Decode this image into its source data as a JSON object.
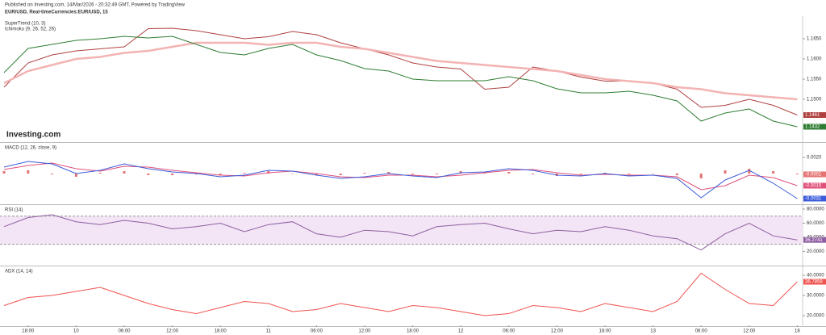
{
  "header": {
    "published": "Published on Investing.com, 14/Mar/2026 - 20:32:49 GMT, Powered by TradingView",
    "symbol": "EUR/USD, Real-timeCurrencies:EUR/USD, 15",
    "watermark": "Investing.com"
  },
  "chart_data": [
    {
      "type": "line",
      "ylim": [
        1.1396,
        1.1702
      ],
      "yticks": [
        {
          "value": 1.165,
          "label": "1.1650"
        },
        {
          "value": 1.16,
          "label": "1.1600"
        },
        {
          "value": 1.155,
          "label": "1.1550"
        },
        {
          "value": 1.15,
          "label": "1.1500"
        }
      ],
      "series": [
        {
          "name": "SuperTrend (10, 3)",
          "color": "#b04040",
          "tag": true,
          "values": [
            1.153,
            1.159,
            1.161,
            1.162,
            1.1625,
            1.163,
            1.1675,
            1.1676,
            1.167,
            1.166,
            1.165,
            1.1655,
            1.1668,
            1.166,
            1.164,
            1.1625,
            1.161,
            1.159,
            1.158,
            1.1575,
            1.1525,
            1.153,
            1.158,
            1.157,
            1.1555,
            1.1545,
            1.1545,
            1.154,
            1.1525,
            1.148,
            1.1485,
            1.15,
            1.1485,
            1.1461
          ]
        },
        {
          "name": "Ichimoku (9, 26, 52, 26)",
          "color": "#f3b3b3",
          "tag": false,
          "values": [
            1.154,
            1.157,
            1.1585,
            1.16,
            1.1605,
            1.1615,
            1.162,
            1.163,
            1.164,
            1.164,
            1.164,
            1.1635,
            1.164,
            1.164,
            1.163,
            1.1625,
            1.1615,
            1.1605,
            1.1595,
            1.159,
            1.1585,
            1.158,
            1.1575,
            1.157,
            1.156,
            1.155,
            1.1545,
            1.154,
            1.153,
            1.1525,
            1.1515,
            1.151,
            1.1505,
            1.15
          ]
        },
        {
          "color": "#2e7d32",
          "tag": true,
          "values": [
            1.1566,
            1.1626,
            1.1636,
            1.1646,
            1.165,
            1.1656,
            1.1652,
            1.1656,
            1.1636,
            1.1616,
            1.161,
            1.1626,
            1.1636,
            1.161,
            1.1596,
            1.1576,
            1.157,
            1.155,
            1.1546,
            1.1546,
            1.1546,
            1.1556,
            1.1546,
            1.1526,
            1.1516,
            1.1516,
            1.152,
            1.151,
            1.1496,
            1.1446,
            1.1466,
            1.1476,
            1.1446,
            1.1432
          ]
        }
      ]
    },
    {
      "type": "line",
      "title": "MACD (12, 26, close, 9)",
      "ylim": [
        -0.0037,
        0.0037
      ],
      "yticks": [
        {
          "value": 0.002,
          "label": "0.0020"
        }
      ],
      "series": [
        {
          "kind": "bar",
          "color": "#e57373",
          "tag": true,
          "values": [
            0.0003,
            0.0004,
            -0.0001,
            -0.0004,
            0.0001,
            0.0003,
            -0.0002,
            -0.0002,
            -0.0001,
            -0.0002,
            0.0001,
            0.0003,
            0.0,
            -0.0002,
            -0.0002,
            0.0001,
            0.0002,
            -0.0001,
            -0.0001,
            0.0003,
            0.0001,
            0.0002,
            -0.0001,
            -0.0003,
            -0.0001,
            0.0001,
            -0.0001,
            0.0,
            -0.0002,
            -0.0006,
            0.0004,
            0.0006,
            0.0003,
            -0.0001
          ]
        },
        {
          "color": "#e0507a",
          "tag": true,
          "values": [
            0.0005,
            0.001,
            0.0013,
            0.0006,
            0.0003,
            0.0009,
            0.0008,
            0.0004,
            0.0001,
            -0.0002,
            -0.0003,
            0.0001,
            0.0003,
            0.0,
            -0.0004,
            -0.0005,
            -0.0002,
            -0.0002,
            -0.0004,
            -0.0002,
            0.0001,
            0.0004,
            0.0005,
            0.0001,
            -0.0002,
            -0.0001,
            -0.0002,
            -0.0002,
            -0.0004,
            -0.002,
            -0.0015,
            -0.0002,
            -0.0005,
            -0.0015
          ]
        },
        {
          "color": "#3b5bdb",
          "tag": true,
          "values": [
            0.0008,
            0.0015,
            0.0012,
            0.0,
            0.0004,
            0.0012,
            0.0006,
            0.0002,
            0.0,
            -0.0004,
            -0.0002,
            0.0004,
            0.0003,
            -0.0002,
            -0.0006,
            -0.0004,
            0.0,
            -0.0003,
            -0.0005,
            0.0001,
            0.0002,
            0.0006,
            0.0004,
            -0.0002,
            -0.0003,
            0.0,
            -0.0003,
            -0.0002,
            -0.0006,
            -0.003,
            -0.0008,
            0.0004,
            -0.0012,
            -0.0031
          ]
        }
      ]
    },
    {
      "type": "line",
      "title": "RSI (14)",
      "ylim": [
        1,
        84.6
      ],
      "band": [
        30,
        70
      ],
      "yticks": [
        {
          "value": 80,
          "label": "80.0000"
        },
        {
          "value": 60,
          "label": "60.0000"
        },
        {
          "value": 40,
          "label": "40.0000"
        },
        {
          "value": 20,
          "label": "20.0000"
        }
      ],
      "series": [
        {
          "color": "#8e5ea2",
          "tag": true,
          "values": [
            55,
            68,
            72,
            62,
            58,
            64,
            60,
            52,
            55,
            60,
            48,
            58,
            62,
            45,
            40,
            50,
            48,
            42,
            55,
            58,
            60,
            52,
            45,
            50,
            48,
            55,
            50,
            42,
            38,
            22,
            45,
            60,
            42,
            36.2741
          ]
        }
      ]
    },
    {
      "type": "line",
      "title": "ADX (14, 14)",
      "ylim": [
        15.2,
        44
      ],
      "yticks": [
        {
          "value": 40,
          "label": "40.0000"
        },
        {
          "value": 30,
          "label": "30.0000"
        },
        {
          "value": 20,
          "label": "20.0000"
        }
      ],
      "categories": [
        null,
        "18:00",
        null,
        "10",
        null,
        "06:00",
        null,
        "12:00",
        null,
        "18:00",
        null,
        "11",
        null,
        "06:00",
        null,
        "12:00",
        null,
        "18:00",
        null,
        "12",
        null,
        "06:00",
        null,
        "12:00",
        null,
        "18:00",
        null,
        "13",
        null,
        "06:00",
        null,
        "12:00",
        null,
        "18"
      ],
      "series": [
        {
          "color": "#ef5350",
          "tag": true,
          "values": [
            25,
            29,
            30,
            32,
            34,
            30,
            26,
            23,
            21,
            24,
            27,
            26,
            22,
            23,
            26,
            24,
            22,
            25,
            24,
            22,
            20,
            21,
            25,
            24,
            22,
            26,
            24,
            22,
            27,
            41,
            33,
            26,
            25,
            36.7858
          ]
        }
      ]
    }
  ]
}
